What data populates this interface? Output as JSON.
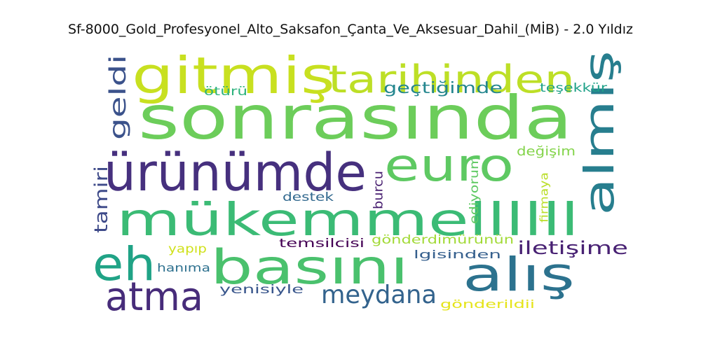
{
  "chart_data": {
    "type": "wordcloud",
    "title": "Sf-8000_Gold_Profesyonel_Alto_Saksafon_Çanta_Ve_Aksesuar_Dahil_(MİB) - 2.0 Yıldız",
    "words": [
      {
        "text": "sonrasında",
        "color": "#6ccd5a"
      },
      {
        "text": "gitmiş",
        "color": "#c8e020"
      },
      {
        "text": "tarihinden",
        "color": "#bddf26"
      },
      {
        "text": "ürünümde",
        "color": "#46307e"
      },
      {
        "text": "euro",
        "color": "#5ec962"
      },
      {
        "text": "almış",
        "color": "#277e8e"
      },
      {
        "text": "mükemmellllll",
        "color": "#3bbb75"
      },
      {
        "text": "eh",
        "color": "#20a386"
      },
      {
        "text": "basını",
        "color": "#4ac16d"
      },
      {
        "text": "alış",
        "color": "#2c728e"
      },
      {
        "text": "atma",
        "color": "#472c7a"
      },
      {
        "text": "meydana",
        "color": "#33638d"
      },
      {
        "text": "geldi",
        "color": "#3b528b"
      },
      {
        "text": "geçtiğimde",
        "color": "#24868e"
      },
      {
        "text": "iletişime",
        "color": "#482173"
      },
      {
        "text": "tamiri",
        "color": "#3e4a89"
      },
      {
        "text": "ötürü",
        "color": "#2db27d"
      },
      {
        "text": "teşekkür",
        "color": "#1fa188"
      },
      {
        "text": "değişim",
        "color": "#84d44b"
      },
      {
        "text": "ediyorum",
        "color": "#5ec962"
      },
      {
        "text": "firmaya",
        "color": "#bade28"
      },
      {
        "text": "burcu",
        "color": "#481f70"
      },
      {
        "text": "destek",
        "color": "#31688e"
      },
      {
        "text": "yapıp",
        "color": "#d0e11c"
      },
      {
        "text": "temsilcisi",
        "color": "#440154"
      },
      {
        "text": "gönderdimürünün",
        "color": "#a2da37"
      },
      {
        "text": "lgisinden",
        "color": "#355f8d"
      },
      {
        "text": "hanıma",
        "color": "#2d708e"
      },
      {
        "text": "yenisiyle",
        "color": "#39568c"
      },
      {
        "text": "gönderildii",
        "color": "#e5e419"
      }
    ]
  }
}
